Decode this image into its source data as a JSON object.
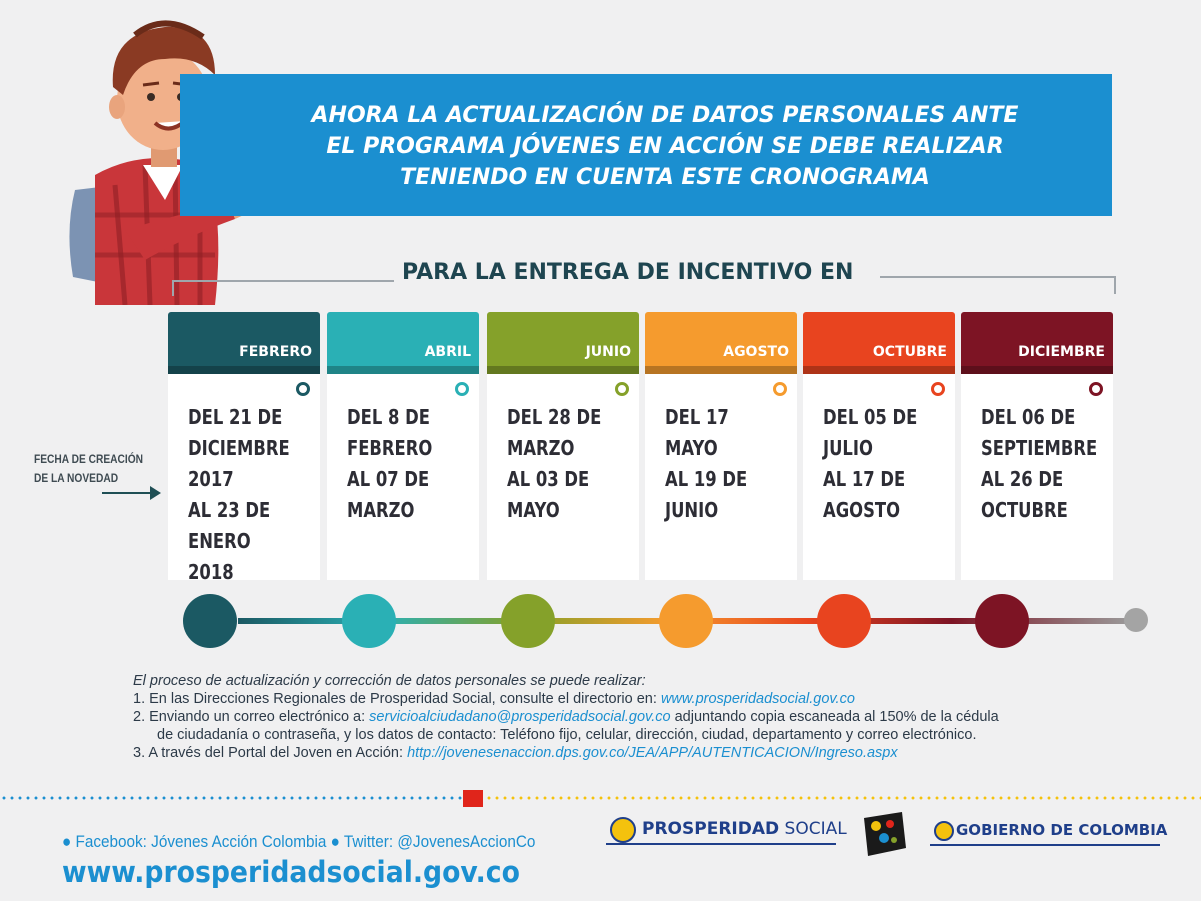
{
  "header": {
    "lines": [
      "AHORA LA ACTUALIZACIÓN DE DATOS PERSONALES ANTE",
      "EL PROGRAMA JÓVENES EN ACCIÓN  SE DEBE REALIZAR",
      "TENIENDO EN CUENTA ESTE CRONOGRAMA"
    ]
  },
  "subtitle": "PARA LA ENTREGA DE INCENTIVO EN",
  "side_label": {
    "line1": "FECHA DE CREACIÓN",
    "line2": "DE LA NOVEDAD"
  },
  "columns": [
    {
      "month": "FEBRERO",
      "dates": "DEL 21 DE\nDICIEMBRE\n2017\nAL 23 DE\nENERO 2018",
      "color": "#1b5963"
    },
    {
      "month": "ABRIL",
      "dates": "DEL 8 DE\nFEBRERO\nAL 07 DE\nMARZO",
      "color": "#2ab0b5"
    },
    {
      "month": "JUNIO",
      "dates": "DEL 28 DE\nMARZO\nAL 03 DE\nMAYO",
      "color": "#85a12a"
    },
    {
      "month": "AGOSTO",
      "dates": "DEL 17\nMAYO\nAL 19 DE\nJUNIO",
      "color": "#f59b2e"
    },
    {
      "month": "OCTUBRE",
      "dates": "DEL 05 DE\nJULIO\nAL 17 DE\nAGOSTO",
      "color": "#e8441f"
    },
    {
      "month": "DICIEMBRE",
      "dates": "DEL 06 DE\nSEPTIEMBRE\nAL 26 DE\nOCTUBRE",
      "color": "#7d1424"
    }
  ],
  "info": {
    "lead": "El proceso de actualización y corrección de datos personales se puede realizar:",
    "item1_text": "1. En las Direcciones Regionales de Prosperidad Social, consulte el directorio en: ",
    "item1_link": "www.prosperidadsocial.gov.co",
    "item2_text": "2. Enviando un correo electrónico a: ",
    "item2_link": "servicioalciudadano@prosperidadsocial.gov.co",
    "item2_rest": " adjuntando copia escaneada al 150% de la cédula",
    "item2_cont": "de ciudadanía o contraseña, y los datos de contacto: Teléfono fijo, celular, dirección, ciudad, departamento y correo electrónico.",
    "item3_text": "3. A través del Portal del Joven en Acción: ",
    "item3_link": "http://jovenesenaccion.dps.gov.co/JEA/APP/AUTENTICACION/Ingreso.aspx"
  },
  "footer": {
    "social": "● Facebook: Jóvenes Acción Colombia   ● Twitter: @JovenesAccionCo",
    "website": "www.prosperidadsocial.gov.co",
    "logo_ps_bold": "PROSPERIDAD",
    "logo_ps_rest": " SOCIAL",
    "logo_gov": "GOBIERNO DE COLOMBIA"
  },
  "colors": {
    "banner": "#1b8fd0",
    "accent_red": "#e0251b",
    "accent_yellow": "#f4c20d"
  }
}
